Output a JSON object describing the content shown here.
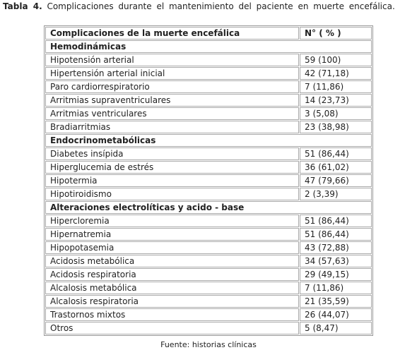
{
  "caption": {
    "label": "Tabla 4.",
    "text": "Complicaciones durante el mantenimiento del paciente en muerte encefálica."
  },
  "table": {
    "header": [
      "Complicaciones de la muerte encefálica",
      "N° ( % )"
    ],
    "sections": [
      {
        "title": "Hemodinámicas",
        "rows": [
          [
            "Hipotensión arterial",
            "59 (100)"
          ],
          [
            "Hipertensión arterial inicial",
            "42 (71,18)"
          ],
          [
            "Paro cardiorrespiratorio",
            "7 (11,86)"
          ],
          [
            "Arritmias supraventriculares",
            "14 (23,73)"
          ],
          [
            "Arritmias ventriculares",
            "3 (5,08)"
          ],
          [
            "Bradiarritmias",
            "23 (38,98)"
          ]
        ]
      },
      {
        "title": "Endocrinometabólicas",
        "rows": [
          [
            "Diabetes insípida",
            "51 (86,44)"
          ],
          [
            "Hiperglucemia de estrés",
            "36 (61,02)"
          ],
          [
            "Hipotermia",
            "47 (79,66)"
          ],
          [
            "Hipotiroidismo",
            "2 (3,39)"
          ]
        ]
      },
      {
        "title": "Alteraciones electrolíticas y acido - base",
        "rows": [
          [
            "Hipercloremia",
            "51 (86,44)"
          ],
          [
            "Hipernatremia",
            "51 (86,44)"
          ],
          [
            "Hipopotasemia",
            "43 (72,88)"
          ],
          [
            "Acidosis metabólica",
            "34 (57,63)"
          ],
          [
            "Acidosis respiratoria",
            "29 (49,15)"
          ],
          [
            "Alcalosis metabólica",
            "7 (11,86)"
          ],
          [
            "Alcalosis respiratoria",
            "21 (35,59)"
          ],
          [
            "Trastornos mixtos",
            "26 (44,07)"
          ],
          [
            "Otros",
            "5 (8,47)"
          ]
        ]
      }
    ]
  },
  "footer": "Fuente: historias clínicas"
}
